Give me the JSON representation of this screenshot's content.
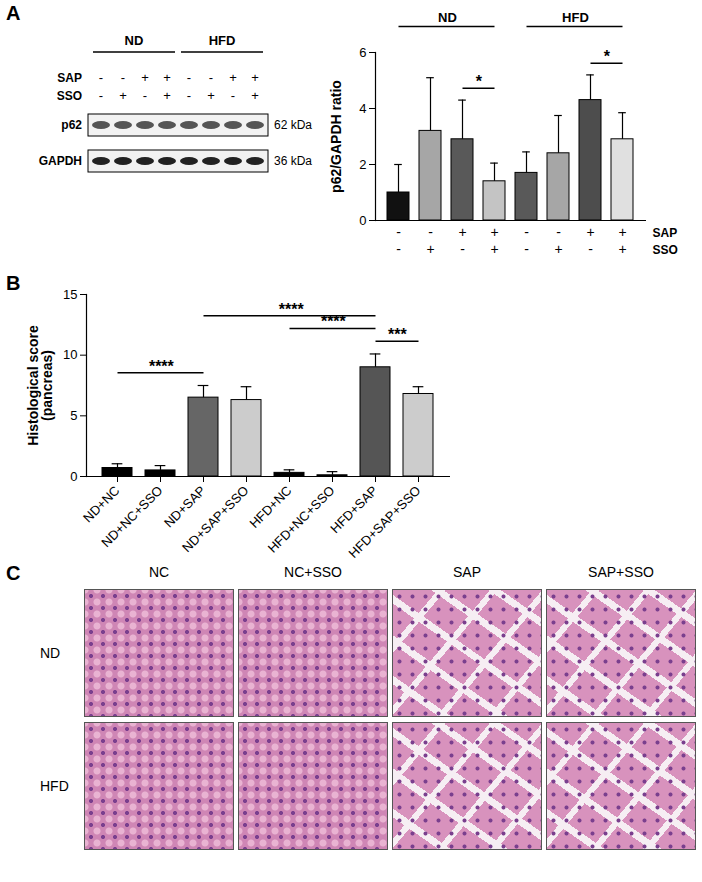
{
  "blot": {
    "panel": "A",
    "groups": [
      {
        "label": "ND",
        "start": 0,
        "end": 3
      },
      {
        "label": "HFD",
        "start": 4,
        "end": 7
      }
    ],
    "rows": [
      {
        "label": "SAP",
        "marks": [
          "-",
          "-",
          "+",
          "+",
          "-",
          "-",
          "+",
          "+"
        ]
      },
      {
        "label": "SSO",
        "marks": [
          "-",
          "+",
          "-",
          "+",
          "-",
          "+",
          "-",
          "+"
        ]
      }
    ],
    "bands": [
      {
        "label": "p62",
        "size": "62 kDa"
      },
      {
        "label": "GAPDH",
        "size": "36 kDa"
      }
    ]
  },
  "chart_data": [
    {
      "type": "bar",
      "panel": "A",
      "ylabel": "p62/GAPDH ratio",
      "categories": [
        null,
        null,
        null,
        null,
        null,
        null,
        null,
        null
      ],
      "values": [
        1.0,
        3.2,
        2.9,
        1.4,
        1.7,
        2.4,
        4.3,
        2.9
      ],
      "errors": [
        1.0,
        1.9,
        1.4,
        0.65,
        0.75,
        1.35,
        0.9,
        0.95
      ],
      "colors": [
        "#111111",
        "#a6a6a6",
        "#595959",
        "#c4c4c4",
        "#595959",
        "#a6a6a6",
        "#4d4d4d",
        "#e0e0e0"
      ],
      "ylim": [
        0,
        6
      ],
      "yticks": [
        0,
        2,
        4,
        6
      ],
      "tick_labels": "y",
      "groups": [
        {
          "label": "ND",
          "start": 0,
          "end": 3
        },
        {
          "label": "HFD",
          "start": 4,
          "end": 7
        }
      ],
      "condition_rows": [
        {
          "label": "SAP",
          "marks": [
            "-",
            "-",
            "+",
            "+",
            "-",
            "-",
            "+",
            "+"
          ]
        },
        {
          "label": "SSO",
          "marks": [
            "-",
            "+",
            "-",
            "+",
            "-",
            "+",
            "-",
            "+"
          ]
        }
      ],
      "annotations": [
        {
          "from": 2,
          "to": 3,
          "label": "*"
        },
        {
          "from": 6,
          "to": 7,
          "label": "*"
        }
      ]
    },
    {
      "type": "bar",
      "panel": "B",
      "ylabel": "Histological score (pancreas)",
      "categories": [
        "ND+NC",
        "ND+NC+SSO",
        "ND+SAP",
        "ND+SAP+SSO",
        "HFD+NC",
        "HFD+NC+SSO",
        "HFD+SAP",
        "HFD+SAP+SSO"
      ],
      "values": [
        0.7,
        0.5,
        6.5,
        6.3,
        0.3,
        0.1,
        9.0,
        6.8
      ],
      "errors": [
        0.35,
        0.4,
        1.0,
        1.1,
        0.25,
        0.3,
        1.1,
        0.6
      ],
      "colors": [
        "#000000",
        "#000000",
        "#666666",
        "#cccccc",
        "#000000",
        "#000000",
        "#555555",
        "#cccccc"
      ],
      "ylim": [
        0,
        15
      ],
      "yticks": [
        0,
        5,
        10,
        15
      ],
      "annotations": [
        {
          "from": 0,
          "to": 2,
          "label": "****"
        },
        {
          "from": 2,
          "to": 6,
          "label": "****"
        },
        {
          "from": 4,
          "to": 6,
          "label": "****"
        },
        {
          "from": 6,
          "to": 7,
          "label": "***"
        }
      ]
    }
  ],
  "histology": {
    "panel": "C",
    "columns": [
      "NC",
      "NC+SSO",
      "SAP",
      "SAP+SSO"
    ],
    "rows": [
      "ND",
      "HFD"
    ]
  }
}
